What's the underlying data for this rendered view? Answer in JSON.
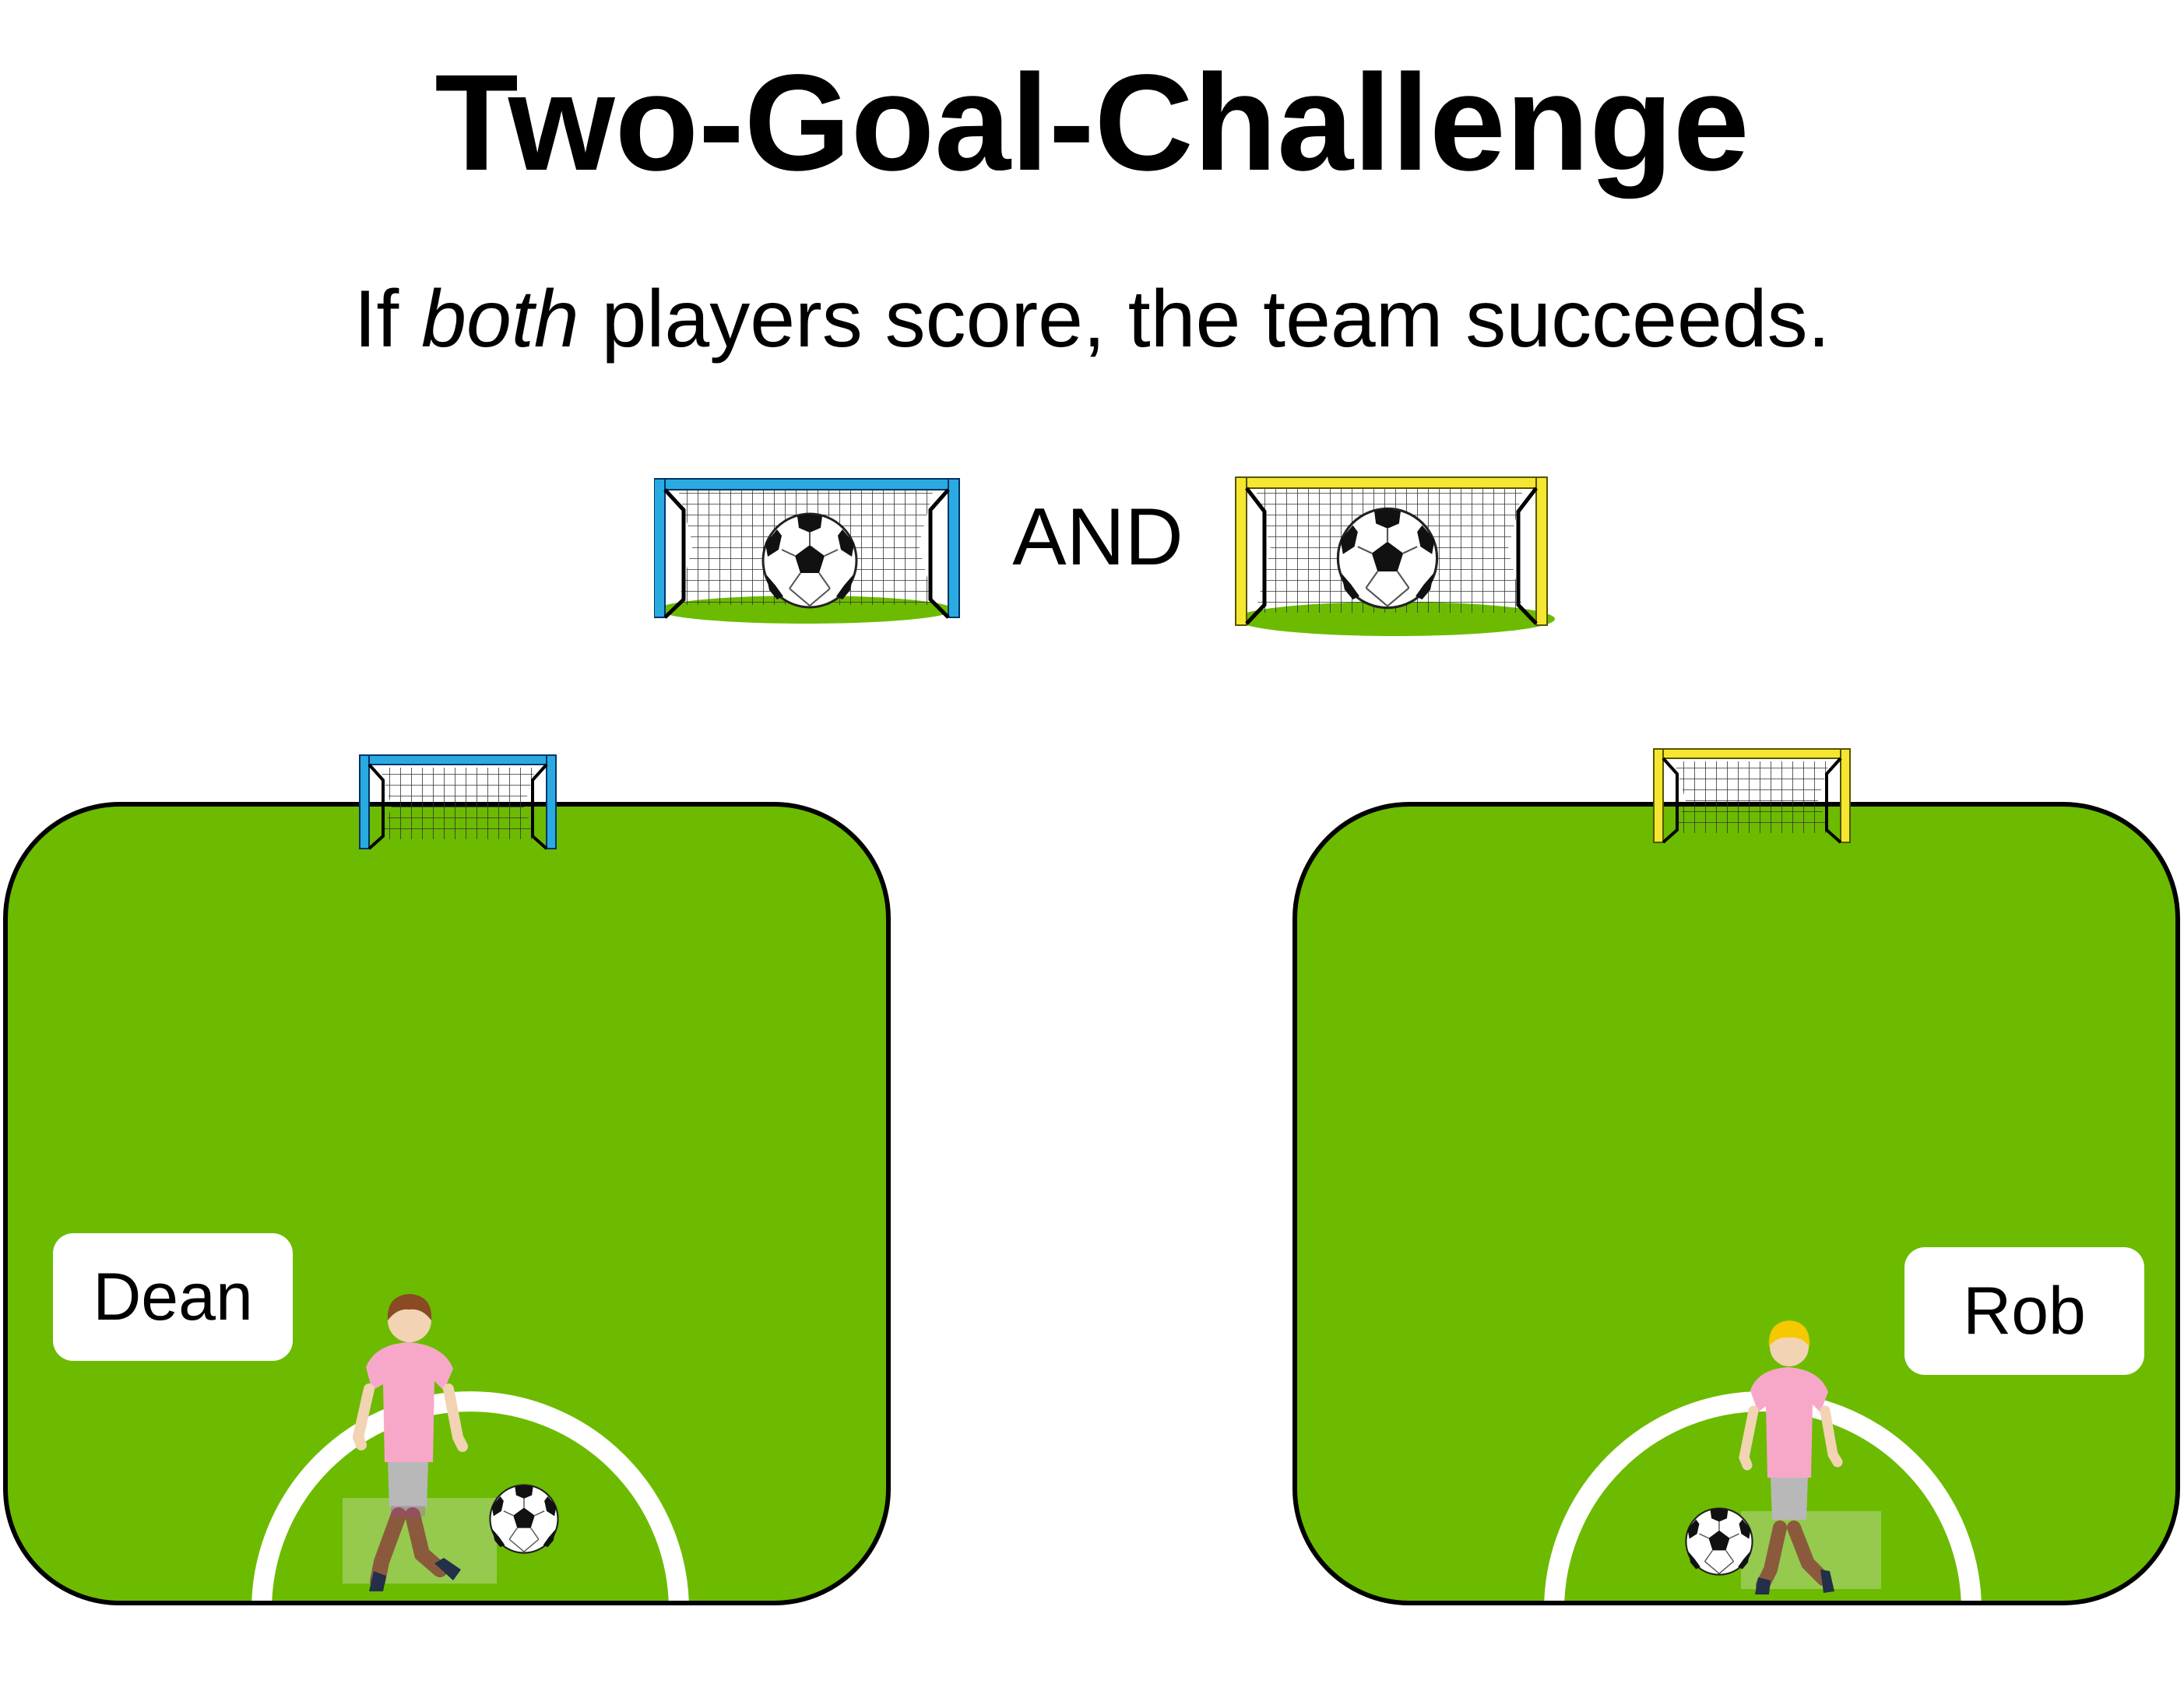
{
  "title": "Two-Goal-Challenge",
  "subtitle": {
    "prefix": "If ",
    "emphasis": "both",
    "suffix": " players score, the team succeeds."
  },
  "connector": "AND",
  "colors": {
    "field_green": "#6cbb00",
    "goal_blue": "#29abe2",
    "goal_yellow": "#f5e632",
    "jersey_pink": "#f7a8c8",
    "shorts_gray": "#b8b8b8"
  },
  "players": [
    {
      "name": "Dean",
      "goal_color": "blue",
      "hair": "brown"
    },
    {
      "name": "Rob",
      "goal_color": "yellow",
      "hair": "blonde"
    }
  ],
  "icons": [
    "soccer-goal-icon",
    "soccer-ball-icon",
    "player-figure-icon"
  ]
}
